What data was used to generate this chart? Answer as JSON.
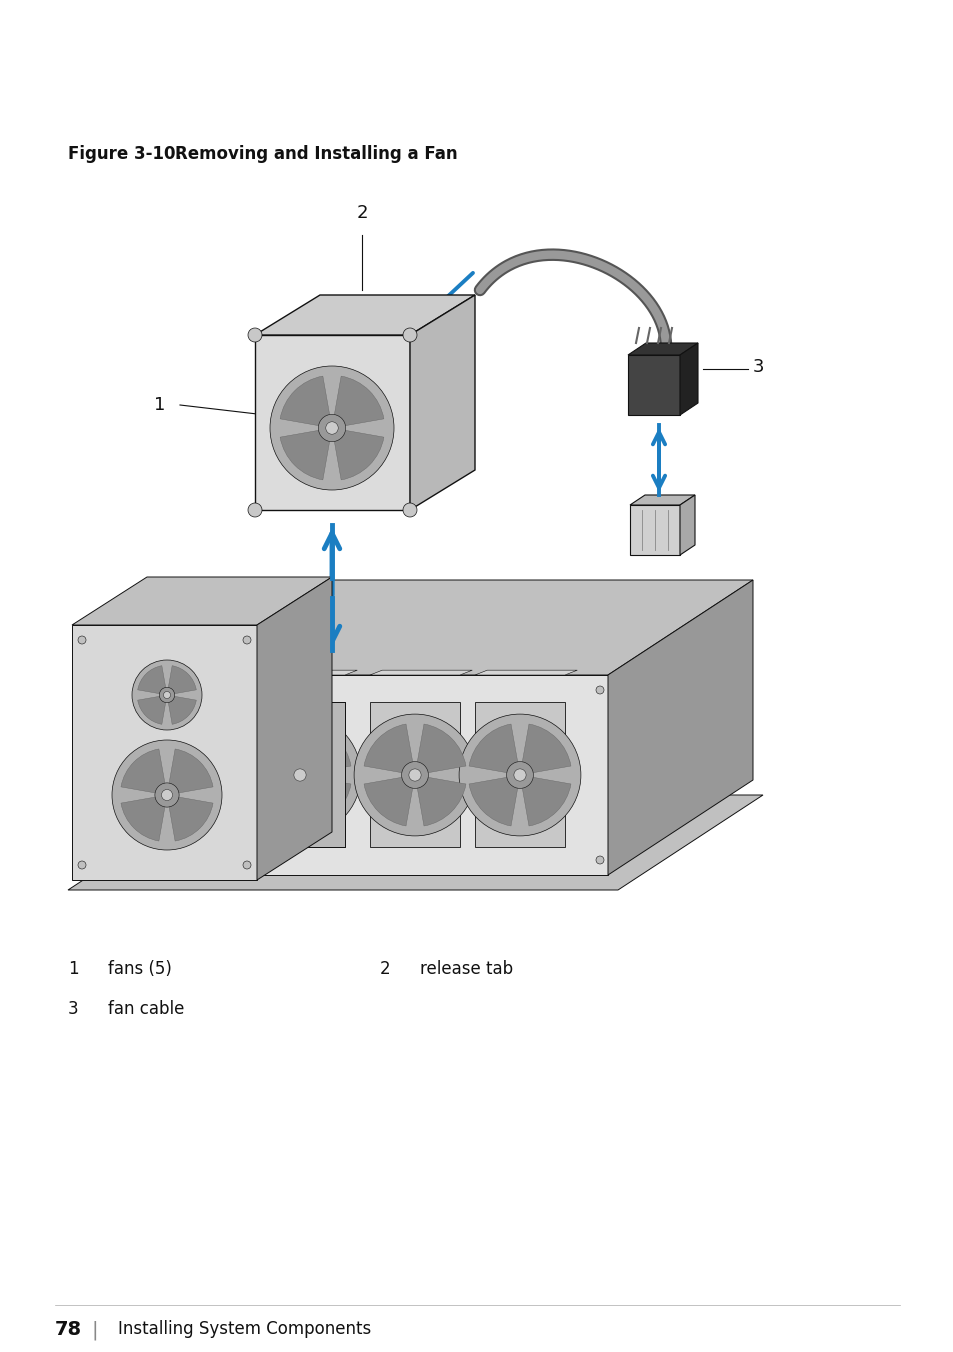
{
  "title": "Figure 3-10.",
  "title_rest": "   Removing and Installing a Fan",
  "background_color": "#ffffff",
  "label1_num": "1",
  "label1_text": "fans (5)",
  "label2_num": "2",
  "label2_text": "release tab",
  "label3_num": "3",
  "label3_text": "fan cable",
  "page_number": "78",
  "page_text": "Installing System Components",
  "arrow_color": "#1b7ec2",
  "line_color": "#111111",
  "gray_light": "#e2e2e2",
  "gray_mid": "#c0c0c0",
  "gray_dark": "#989898",
  "gray_darker": "#787878",
  "cable_color": "#888888",
  "connector_dark": "#444444",
  "connector_mid": "#666666"
}
